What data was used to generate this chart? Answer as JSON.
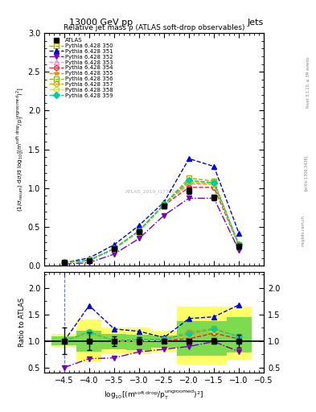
{
  "title_top": "13000 GeV pp",
  "title_right": "Jets",
  "plot_title": "Relative jet mass ρ (ATLAS soft-drop observables)",
  "watermark": "ATLAS_2019_I1772062",
  "rivet_label": "Rivet 3.1.10, ≥ 3M events",
  "arxiv_label": "[arXiv:1306.3436]",
  "mcplots_label": "mcplots.cern.ch",
  "x_data": [
    -4.5,
    -4.0,
    -3.5,
    -3.0,
    -2.5,
    -2.0,
    -1.5,
    -1.0
  ],
  "atlas_y": [
    0.04,
    0.06,
    0.22,
    0.44,
    0.77,
    0.97,
    0.88,
    0.25
  ],
  "atlas_yerr": [
    0.01,
    0.01,
    0.02,
    0.03,
    0.03,
    0.04,
    0.04,
    0.03
  ],
  "py350_y": [
    0.04,
    0.07,
    0.22,
    0.45,
    0.79,
    1.13,
    1.09,
    0.27
  ],
  "py351_y": [
    0.04,
    0.1,
    0.27,
    0.52,
    0.82,
    1.38,
    1.28,
    0.42
  ],
  "py352_y": [
    0.02,
    0.04,
    0.15,
    0.35,
    0.65,
    0.87,
    0.87,
    0.2
  ],
  "py353_y": [
    0.04,
    0.07,
    0.22,
    0.45,
    0.79,
    1.05,
    1.05,
    0.27
  ],
  "py354_y": [
    0.04,
    0.07,
    0.22,
    0.44,
    0.78,
    1.01,
    1.01,
    0.26
  ],
  "py355_y": [
    0.04,
    0.07,
    0.22,
    0.45,
    0.79,
    1.07,
    1.05,
    0.27
  ],
  "py356_y": [
    0.04,
    0.07,
    0.22,
    0.45,
    0.79,
    1.09,
    1.07,
    0.27
  ],
  "py357_y": [
    0.04,
    0.07,
    0.22,
    0.44,
    0.79,
    1.09,
    1.06,
    0.27
  ],
  "py358_y": [
    0.04,
    0.07,
    0.22,
    0.44,
    0.78,
    1.09,
    1.05,
    0.27
  ],
  "py359_y": [
    0.04,
    0.07,
    0.22,
    0.45,
    0.79,
    1.1,
    1.07,
    0.27
  ],
  "ratio_atlas_yerr_lo": [
    0.25,
    0.17,
    0.09,
    0.07,
    0.04,
    0.04,
    0.05,
    0.12
  ],
  "ratio_atlas_yerr_hi": [
    0.25,
    0.17,
    0.09,
    0.07,
    0.04,
    0.04,
    0.05,
    0.12
  ],
  "band_yellow_xedges": [
    -4.75,
    -4.25,
    -3.75,
    -3.25,
    -2.75,
    -2.25,
    -1.75,
    -1.25,
    -0.75
  ],
  "band_yellow_lo": [
    0.87,
    0.6,
    0.75,
    0.75,
    0.8,
    0.55,
    0.55,
    0.65
  ],
  "band_yellow_hi": [
    1.13,
    1.4,
    1.25,
    1.25,
    1.2,
    1.65,
    1.65,
    1.65
  ],
  "band_green_lo": [
    0.92,
    0.8,
    0.84,
    0.83,
    0.87,
    0.72,
    0.72,
    0.78
  ],
  "band_green_hi": [
    1.08,
    1.2,
    1.14,
    1.12,
    1.1,
    1.38,
    1.38,
    1.45
  ],
  "ylim_main": [
    0.0,
    3.0
  ],
  "ylim_ratio": [
    0.4,
    2.3
  ],
  "xlim": [
    -4.9,
    -0.5
  ],
  "series": [
    {
      "key": "py350_y",
      "color": "#aaaa00",
      "marker": "s",
      "ls": "--",
      "label": "Pythia 6.428 350",
      "filled": false
    },
    {
      "key": "py351_y",
      "color": "#0000ee",
      "marker": "^",
      "ls": "--",
      "label": "Pythia 6.428 351",
      "filled": true
    },
    {
      "key": "py352_y",
      "color": "#7700bb",
      "marker": "v",
      "ls": "-.",
      "label": "Pythia 6.428 352",
      "filled": true
    },
    {
      "key": "py353_y",
      "color": "#ff88cc",
      "marker": "^",
      "ls": "--",
      "label": "Pythia 6.428 353",
      "filled": false
    },
    {
      "key": "py354_y",
      "color": "#ee2222",
      "marker": "o",
      "ls": "--",
      "label": "Pythia 6.428 354",
      "filled": false
    },
    {
      "key": "py355_y",
      "color": "#ff8800",
      "marker": "*",
      "ls": "--",
      "label": "Pythia 6.428 355",
      "filled": false
    },
    {
      "key": "py356_y",
      "color": "#88bb00",
      "marker": "s",
      "ls": "--",
      "label": "Pythia 6.428 356",
      "filled": false
    },
    {
      "key": "py357_y",
      "color": "#ccaa00",
      "marker": "D",
      "ls": "--",
      "label": "Pythia 6.428 357",
      "filled": false
    },
    {
      "key": "py358_y",
      "color": "#ccee00",
      "marker": "D",
      "ls": "--",
      "label": "Pythia 6.428 358",
      "filled": false
    },
    {
      "key": "py359_y",
      "color": "#00ccaa",
      "marker": "D",
      "ls": "--",
      "label": "Pythia 6.428 359",
      "filled": true
    }
  ]
}
